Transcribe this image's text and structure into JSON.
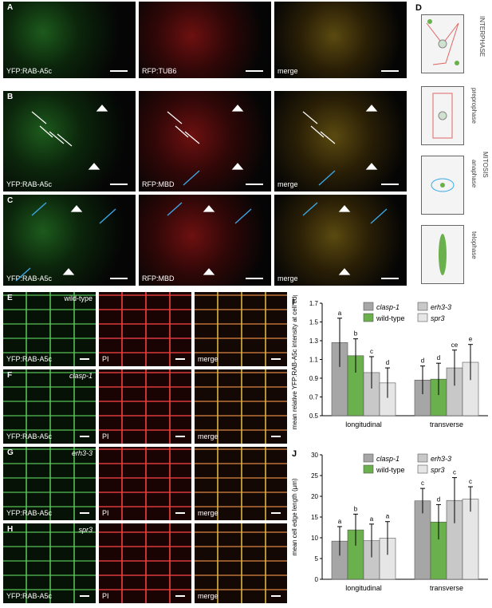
{
  "panels": {
    "A": {
      "letter": "A",
      "labels": [
        "YFP:RAB-A5c",
        "RFP:TUB6",
        "merge"
      ]
    },
    "B": {
      "letter": "B",
      "labels": [
        "YFP:RAB-A5c",
        "RFP:MBD",
        "merge"
      ]
    },
    "C": {
      "letter": "C",
      "labels": [
        "YFP:RAB-A5c",
        "RFP:MBD",
        "merge"
      ]
    },
    "D": {
      "letter": "D",
      "interphase": "INTERPHASE",
      "mitosis": "MITOSIS",
      "preprophase": "preprophase",
      "anaphase": "anaphase",
      "telophase": "telophase"
    },
    "E": {
      "letter": "E",
      "genotype": "wild-type",
      "labels": [
        "YFP:RAB-A5c",
        "PI",
        "merge"
      ]
    },
    "F": {
      "letter": "F",
      "genotype": "clasp-1",
      "labels": [
        "YFP:RAB-A5c",
        "PI",
        "merge"
      ]
    },
    "G": {
      "letter": "G",
      "genotype": "erh3-3",
      "labels": [
        "YFP:RAB-A5c",
        "PI",
        "merge"
      ]
    },
    "H": {
      "letter": "H",
      "genotype": "spr3",
      "labels": [
        "YFP:RAB-A5c",
        "PI",
        "merge"
      ]
    }
  },
  "chart_data": [
    {
      "letter": "I",
      "type": "bar",
      "categories": [
        "longitudinal",
        "transverse"
      ],
      "ylabel": "mean relative YFP:RAB-A5c intensity at cell edge",
      "ylim": [
        0.5,
        1.7
      ],
      "yticks": [
        "0.5",
        "0.7",
        "0.9",
        "1.1",
        "1.3",
        "1.5",
        "1.7"
      ],
      "legend": [
        "clasp-1",
        "erh3-3",
        "wild-type",
        "spr3"
      ],
      "series": [
        {
          "name": "clasp-1",
          "color": "#a6a6a6",
          "values": [
            1.28,
            0.88
          ],
          "err": [
            0.26,
            0.15
          ],
          "letters": [
            "a",
            "d"
          ]
        },
        {
          "name": "wild-type",
          "color": "#6ab04c",
          "values": [
            1.14,
            0.89
          ],
          "err": [
            0.18,
            0.17
          ],
          "letters": [
            "b",
            "d"
          ]
        },
        {
          "name": "erh3-3",
          "color": "#c8c8c8",
          "values": [
            0.96,
            1.01
          ],
          "err": [
            0.17,
            0.19
          ],
          "letters": [
            "c",
            "ce"
          ]
        },
        {
          "name": "spr3",
          "color": "#e6e6e6",
          "values": [
            0.85,
            1.07
          ],
          "err": [
            0.16,
            0.19
          ],
          "letters": [
            "d",
            "e"
          ]
        }
      ]
    },
    {
      "letter": "J",
      "type": "bar",
      "categories": [
        "longitudinal",
        "transverse"
      ],
      "ylabel": "mean cell edge length (µm)",
      "ylim": [
        0,
        30
      ],
      "yticks": [
        "0",
        "5",
        "10",
        "15",
        "20",
        "25",
        "30"
      ],
      "legend": [
        "clasp-1",
        "erh3-3",
        "wild-type",
        "spr3"
      ],
      "series": [
        {
          "name": "clasp-1",
          "color": "#a6a6a6",
          "values": [
            9.2,
            18.9
          ],
          "err": [
            3.5,
            3.0
          ],
          "letters": [
            "a",
            "c"
          ]
        },
        {
          "name": "wild-type",
          "color": "#6ab04c",
          "values": [
            11.9,
            13.8
          ],
          "err": [
            3.8,
            4.2
          ],
          "letters": [
            "b",
            "d"
          ]
        },
        {
          "name": "erh3-3",
          "color": "#c8c8c8",
          "values": [
            9.3,
            19.0
          ],
          "err": [
            4.0,
            5.5
          ],
          "letters": [
            "a",
            "c"
          ]
        },
        {
          "name": "spr3",
          "color": "#e6e6e6",
          "values": [
            9.9,
            19.3
          ],
          "err": [
            4.0,
            3.0
          ],
          "letters": [
            "a",
            "c"
          ]
        }
      ]
    }
  ]
}
